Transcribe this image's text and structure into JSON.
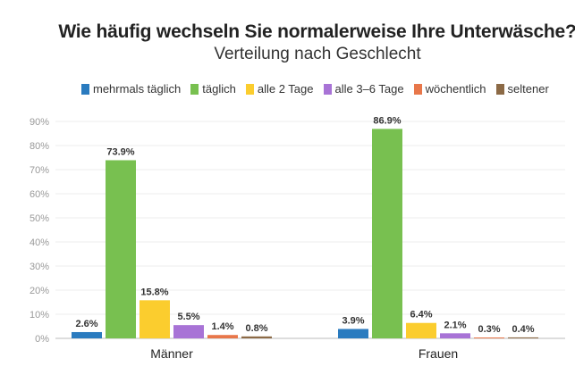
{
  "chart_data": {
    "type": "bar",
    "title": "Wie häufig wechseln Sie normalerweise Ihre Unterwäsche?",
    "subtitle": "Verteilung nach Geschlecht",
    "categories": [
      "Männer",
      "Frauen"
    ],
    "ylim": [
      0,
      90
    ],
    "yticks": [
      "0%",
      "10%",
      "20%",
      "30%",
      "40%",
      "50%",
      "60%",
      "70%",
      "80%",
      "90%"
    ],
    "grid": true,
    "legend_position": "top",
    "series": [
      {
        "name": "mehrmals täglich",
        "color": "#2a7bbf",
        "values": [
          2.6,
          3.9
        ],
        "labels": [
          "2.6%",
          "3.9%"
        ]
      },
      {
        "name": "täglich",
        "color": "#78c050",
        "values": [
          73.9,
          86.9
        ],
        "labels": [
          "73.9%",
          "86.9%"
        ]
      },
      {
        "name": "alle 2 Tage",
        "color": "#fbcd2e",
        "values": [
          15.8,
          6.4
        ],
        "labels": [
          "15.8%",
          "6.4%"
        ]
      },
      {
        "name": "alle 3–6 Tage",
        "color": "#a873d6",
        "values": [
          5.5,
          2.1
        ],
        "labels": [
          "5.5%",
          "2.1%"
        ]
      },
      {
        "name": "wöchentlich",
        "color": "#e8774a",
        "values": [
          1.4,
          0.3
        ],
        "labels": [
          "1.4%",
          "0.3%"
        ]
      },
      {
        "name": "seltener",
        "color": "#8c6a46",
        "values": [
          0.8,
          0.4
        ],
        "labels": [
          "0.8%",
          "0.4%"
        ]
      }
    ]
  }
}
